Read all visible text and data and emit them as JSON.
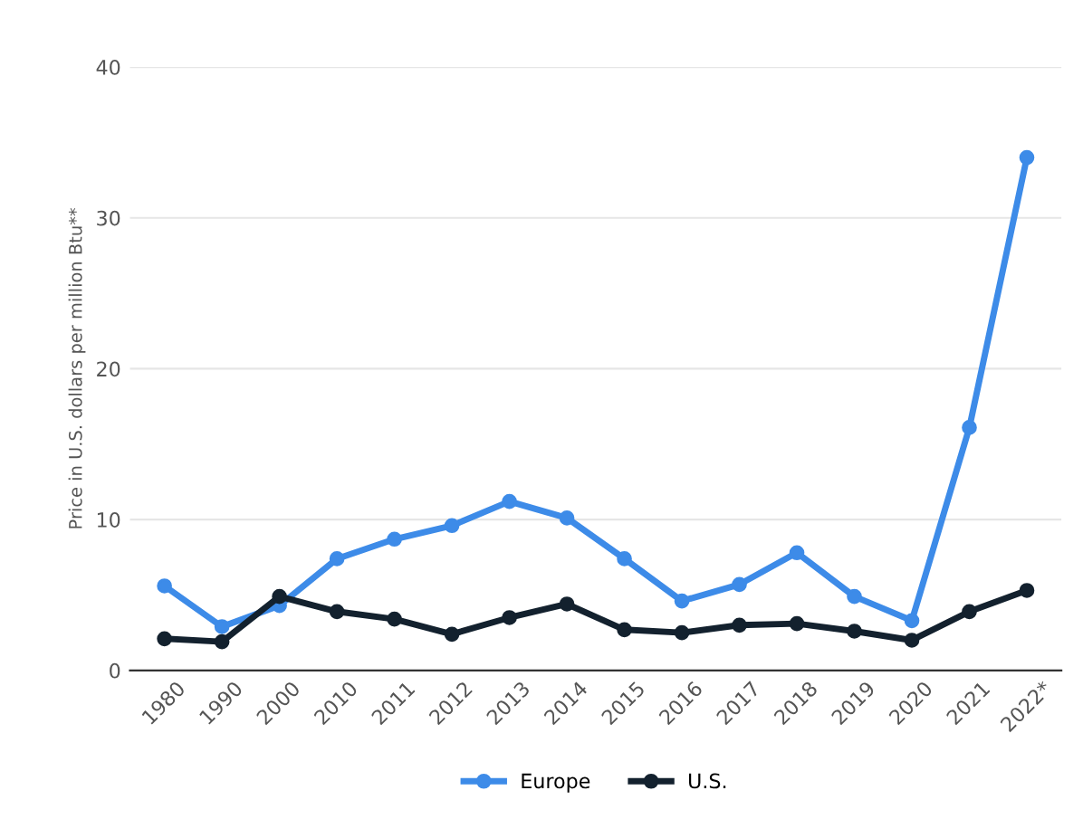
{
  "chart_data": {
    "type": "line",
    "ylabel": "Price in U.S. dollars per million Btu**",
    "categories": [
      "1980",
      "1990",
      "2000",
      "2010",
      "2011",
      "2012",
      "2013",
      "2014",
      "2015",
      "2016",
      "2017",
      "2018",
      "2019",
      "2020",
      "2021",
      "2022*"
    ],
    "series": [
      {
        "name": "Europe",
        "color": "#3d8be8",
        "values": [
          5.6,
          2.9,
          4.3,
          7.4,
          8.7,
          9.6,
          11.2,
          10.1,
          7.4,
          4.6,
          5.7,
          7.8,
          4.9,
          3.3,
          16.1,
          34.0
        ]
      },
      {
        "name": "U.S.",
        "color": "#13212e",
        "values": [
          2.1,
          1.9,
          4.9,
          3.9,
          3.4,
          2.4,
          3.5,
          4.4,
          2.7,
          2.5,
          3.0,
          3.1,
          2.6,
          2.0,
          3.9,
          5.3
        ]
      }
    ],
    "ylim": [
      0,
      40
    ],
    "yticks": [
      0,
      10,
      20,
      30,
      40
    ],
    "grid": "y",
    "legend": "bottom",
    "marker": "circle",
    "line_style": "solid"
  }
}
